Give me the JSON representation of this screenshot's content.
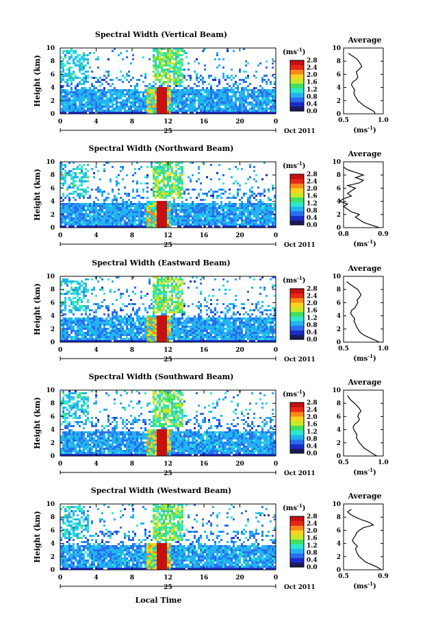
{
  "figure": {
    "ylabel": "Height (km)",
    "xlabel": "Local Time",
    "date_day": "25",
    "date_month_year": "Oct 2011",
    "colorbar_unit": "(ms",
    "colorbar_unit_exp": "-1",
    "colorbar_unit_close": ")",
    "avg_title": "Average",
    "avg_unit": "(ms",
    "avg_unit_exp": "-1",
    "avg_unit_close": ")",
    "colors": {
      "scale": [
        "#1a1a5a",
        "#1a2cc8",
        "#2a6ef0",
        "#22b4f0",
        "#2ee8d0",
        "#40e060",
        "#c8e828",
        "#f8d420",
        "#f88a18",
        "#e82818",
        "#c81010"
      ]
    }
  },
  "chart_data": [
    {
      "type": "heatmap",
      "title": "Spectral Width (Vertical Beam)",
      "x_range": [
        0,
        24
      ],
      "x_ticks": [
        "0",
        "4",
        "8",
        "12",
        "16",
        "20",
        "0"
      ],
      "y_range": [
        0,
        10
      ],
      "y_ticks": [
        "0",
        "2",
        "4",
        "6",
        "8",
        "10"
      ],
      "colorbar_range": [
        0,
        2.8
      ],
      "colorbar_ticks": [
        "0.0",
        "0.4",
        "0.8",
        "1.2",
        "1.6",
        "2.0",
        "2.4",
        "2.8"
      ]
    },
    {
      "type": "line",
      "title": "Average",
      "x_range": [
        0.5,
        1.0
      ],
      "x_ticks": [
        "0.5",
        "1.0"
      ],
      "y_range": [
        0,
        10
      ],
      "y_ticks": [
        "0",
        "2",
        "4",
        "6",
        "8",
        "10"
      ],
      "x": [
        0.9,
        0.88,
        0.82,
        0.76,
        0.72,
        0.68,
        0.66,
        0.64,
        0.63,
        0.64,
        0.62,
        0.6,
        0.61,
        0.66,
        0.68,
        0.67,
        0.66,
        0.7,
        0.73,
        0.71,
        0.69,
        0.66,
        0.61,
        0.56
      ],
      "y": [
        0.0,
        0.4,
        0.8,
        1.2,
        1.6,
        2.0,
        2.4,
        2.8,
        3.2,
        3.6,
        4.0,
        4.4,
        4.8,
        5.2,
        5.6,
        6.0,
        6.4,
        6.8,
        7.2,
        7.6,
        8.0,
        8.4,
        8.8,
        9.2
      ]
    },
    {
      "type": "heatmap",
      "title": "Spectral Width (Northward Beam)",
      "x_range": [
        0,
        24
      ],
      "x_ticks": [
        "0",
        "4",
        "8",
        "12",
        "16",
        "20",
        "0"
      ],
      "y_range": [
        0,
        10
      ],
      "y_ticks": [
        "0",
        "2",
        "4",
        "6",
        "8",
        "10"
      ],
      "colorbar_range": [
        0,
        2.8
      ],
      "colorbar_ticks": [
        "0.0",
        "0.4",
        "0.8",
        "1.2",
        "1.6",
        "2.0",
        "2.4",
        "2.8"
      ]
    },
    {
      "type": "line",
      "title": "Average",
      "x_range": [
        0.8,
        0.9
      ],
      "x_ticks": [
        "0.8",
        "0.9"
      ],
      "y_range": [
        0,
        10
      ],
      "y_ticks": [
        "0",
        "2",
        "4",
        "6",
        "8",
        "10"
      ],
      "x": [
        0.89,
        0.87,
        0.85,
        0.84,
        0.83,
        0.84,
        0.82,
        0.81,
        0.8,
        0.81,
        0.79,
        0.8,
        0.82,
        0.81,
        0.82,
        0.83,
        0.81,
        0.84,
        0.85,
        0.83,
        0.85,
        0.83,
        0.81,
        0.8
      ],
      "y": [
        0.0,
        0.4,
        0.8,
        1.2,
        1.6,
        2.0,
        2.4,
        2.8,
        3.2,
        3.6,
        4.0,
        4.4,
        4.8,
        5.2,
        5.6,
        6.0,
        6.4,
        6.8,
        7.2,
        7.6,
        8.0,
        8.4,
        8.8,
        9.2
      ]
    },
    {
      "type": "heatmap",
      "title": "Spectral Width (Eastward Beam)",
      "x_range": [
        0,
        24
      ],
      "x_ticks": [
        "0",
        "4",
        "8",
        "12",
        "16",
        "20",
        "0"
      ],
      "y_range": [
        0,
        10
      ],
      "y_ticks": [
        "0",
        "2",
        "4",
        "6",
        "8",
        "10"
      ],
      "colorbar_range": [
        0,
        2.8
      ],
      "colorbar_ticks": [
        "0.0",
        "0.4",
        "0.8",
        "1.2",
        "1.6",
        "2.0",
        "2.4",
        "2.8"
      ]
    },
    {
      "type": "line",
      "title": "Average",
      "x_range": [
        0.5,
        1.0
      ],
      "x_ticks": [
        "0.5",
        "1.0"
      ],
      "y_range": [
        0,
        10
      ],
      "y_ticks": [
        "0",
        "2",
        "4",
        "6",
        "8",
        "10"
      ],
      "x": [
        0.95,
        0.88,
        0.8,
        0.74,
        0.7,
        0.68,
        0.66,
        0.65,
        0.63,
        0.64,
        0.61,
        0.59,
        0.6,
        0.64,
        0.66,
        0.68,
        0.67,
        0.7,
        0.72,
        0.7,
        0.68,
        0.63,
        0.58,
        0.54
      ],
      "y": [
        0.0,
        0.4,
        0.8,
        1.2,
        1.6,
        2.0,
        2.4,
        2.8,
        3.2,
        3.6,
        4.0,
        4.4,
        4.8,
        5.2,
        5.6,
        6.0,
        6.4,
        6.8,
        7.2,
        7.6,
        8.0,
        8.4,
        8.8,
        9.2
      ]
    },
    {
      "type": "heatmap",
      "title": "Spectral Width (Southward Beam)",
      "x_range": [
        0,
        24
      ],
      "x_ticks": [
        "0",
        "4",
        "8",
        "12",
        "16",
        "20",
        "0"
      ],
      "y_range": [
        0,
        10
      ],
      "y_ticks": [
        "0",
        "2",
        "4",
        "6",
        "8",
        "10"
      ],
      "colorbar_range": [
        0,
        2.8
      ],
      "colorbar_ticks": [
        "0.0",
        "0.4",
        "0.8",
        "1.2",
        "1.6",
        "2.0",
        "2.4",
        "2.8"
      ]
    },
    {
      "type": "line",
      "title": "Average",
      "x_range": [
        0.5,
        1.0
      ],
      "x_ticks": [
        "0.5",
        "1.0"
      ],
      "y_range": [
        0,
        10
      ],
      "y_ticks": [
        "0",
        "2",
        "4",
        "6",
        "8",
        "10"
      ],
      "x": [
        0.92,
        0.86,
        0.81,
        0.76,
        0.73,
        0.7,
        0.68,
        0.66,
        0.67,
        0.65,
        0.63,
        0.62,
        0.64,
        0.68,
        0.7,
        0.68,
        0.69,
        0.72,
        0.7,
        0.67,
        0.64,
        0.6,
        0.57,
        0.55
      ],
      "y": [
        0.0,
        0.4,
        0.8,
        1.2,
        1.6,
        2.0,
        2.4,
        2.8,
        3.2,
        3.6,
        4.0,
        4.4,
        4.8,
        5.2,
        5.6,
        6.0,
        6.4,
        6.8,
        7.2,
        7.6,
        8.0,
        8.4,
        8.8,
        9.2
      ]
    },
    {
      "type": "heatmap",
      "title": "Spectral Width (Westward Beam)",
      "x_range": [
        0,
        24
      ],
      "x_ticks": [
        "0",
        "4",
        "8",
        "12",
        "16",
        "20",
        "0"
      ],
      "y_range": [
        0,
        10
      ],
      "y_ticks": [
        "0",
        "2",
        "4",
        "6",
        "8",
        "10"
      ],
      "colorbar_range": [
        0,
        2.8
      ],
      "colorbar_ticks": [
        "0.0",
        "0.4",
        "0.8",
        "1.2",
        "1.6",
        "2.0",
        "2.4",
        "2.8"
      ]
    },
    {
      "type": "line",
      "title": "Average",
      "x_range": [
        0.5,
        0.9
      ],
      "x_ticks": [
        "0.5",
        "0.9"
      ],
      "y_range": [
        0,
        10
      ],
      "y_ticks": [
        "0",
        "2",
        "4",
        "6",
        "8",
        "10"
      ],
      "x": [
        0.88,
        0.84,
        0.78,
        0.72,
        0.69,
        0.66,
        0.64,
        0.63,
        0.62,
        0.64,
        0.61,
        0.59,
        0.6,
        0.62,
        0.63,
        0.66,
        0.7,
        0.8,
        0.76,
        0.68,
        0.62,
        0.57,
        0.54,
        0.58
      ],
      "y": [
        0.0,
        0.4,
        0.8,
        1.2,
        1.6,
        2.0,
        2.4,
        2.8,
        3.2,
        3.6,
        4.0,
        4.4,
        4.8,
        5.2,
        5.6,
        6.0,
        6.4,
        6.8,
        7.2,
        7.6,
        8.0,
        8.4,
        8.8,
        9.2
      ]
    }
  ]
}
